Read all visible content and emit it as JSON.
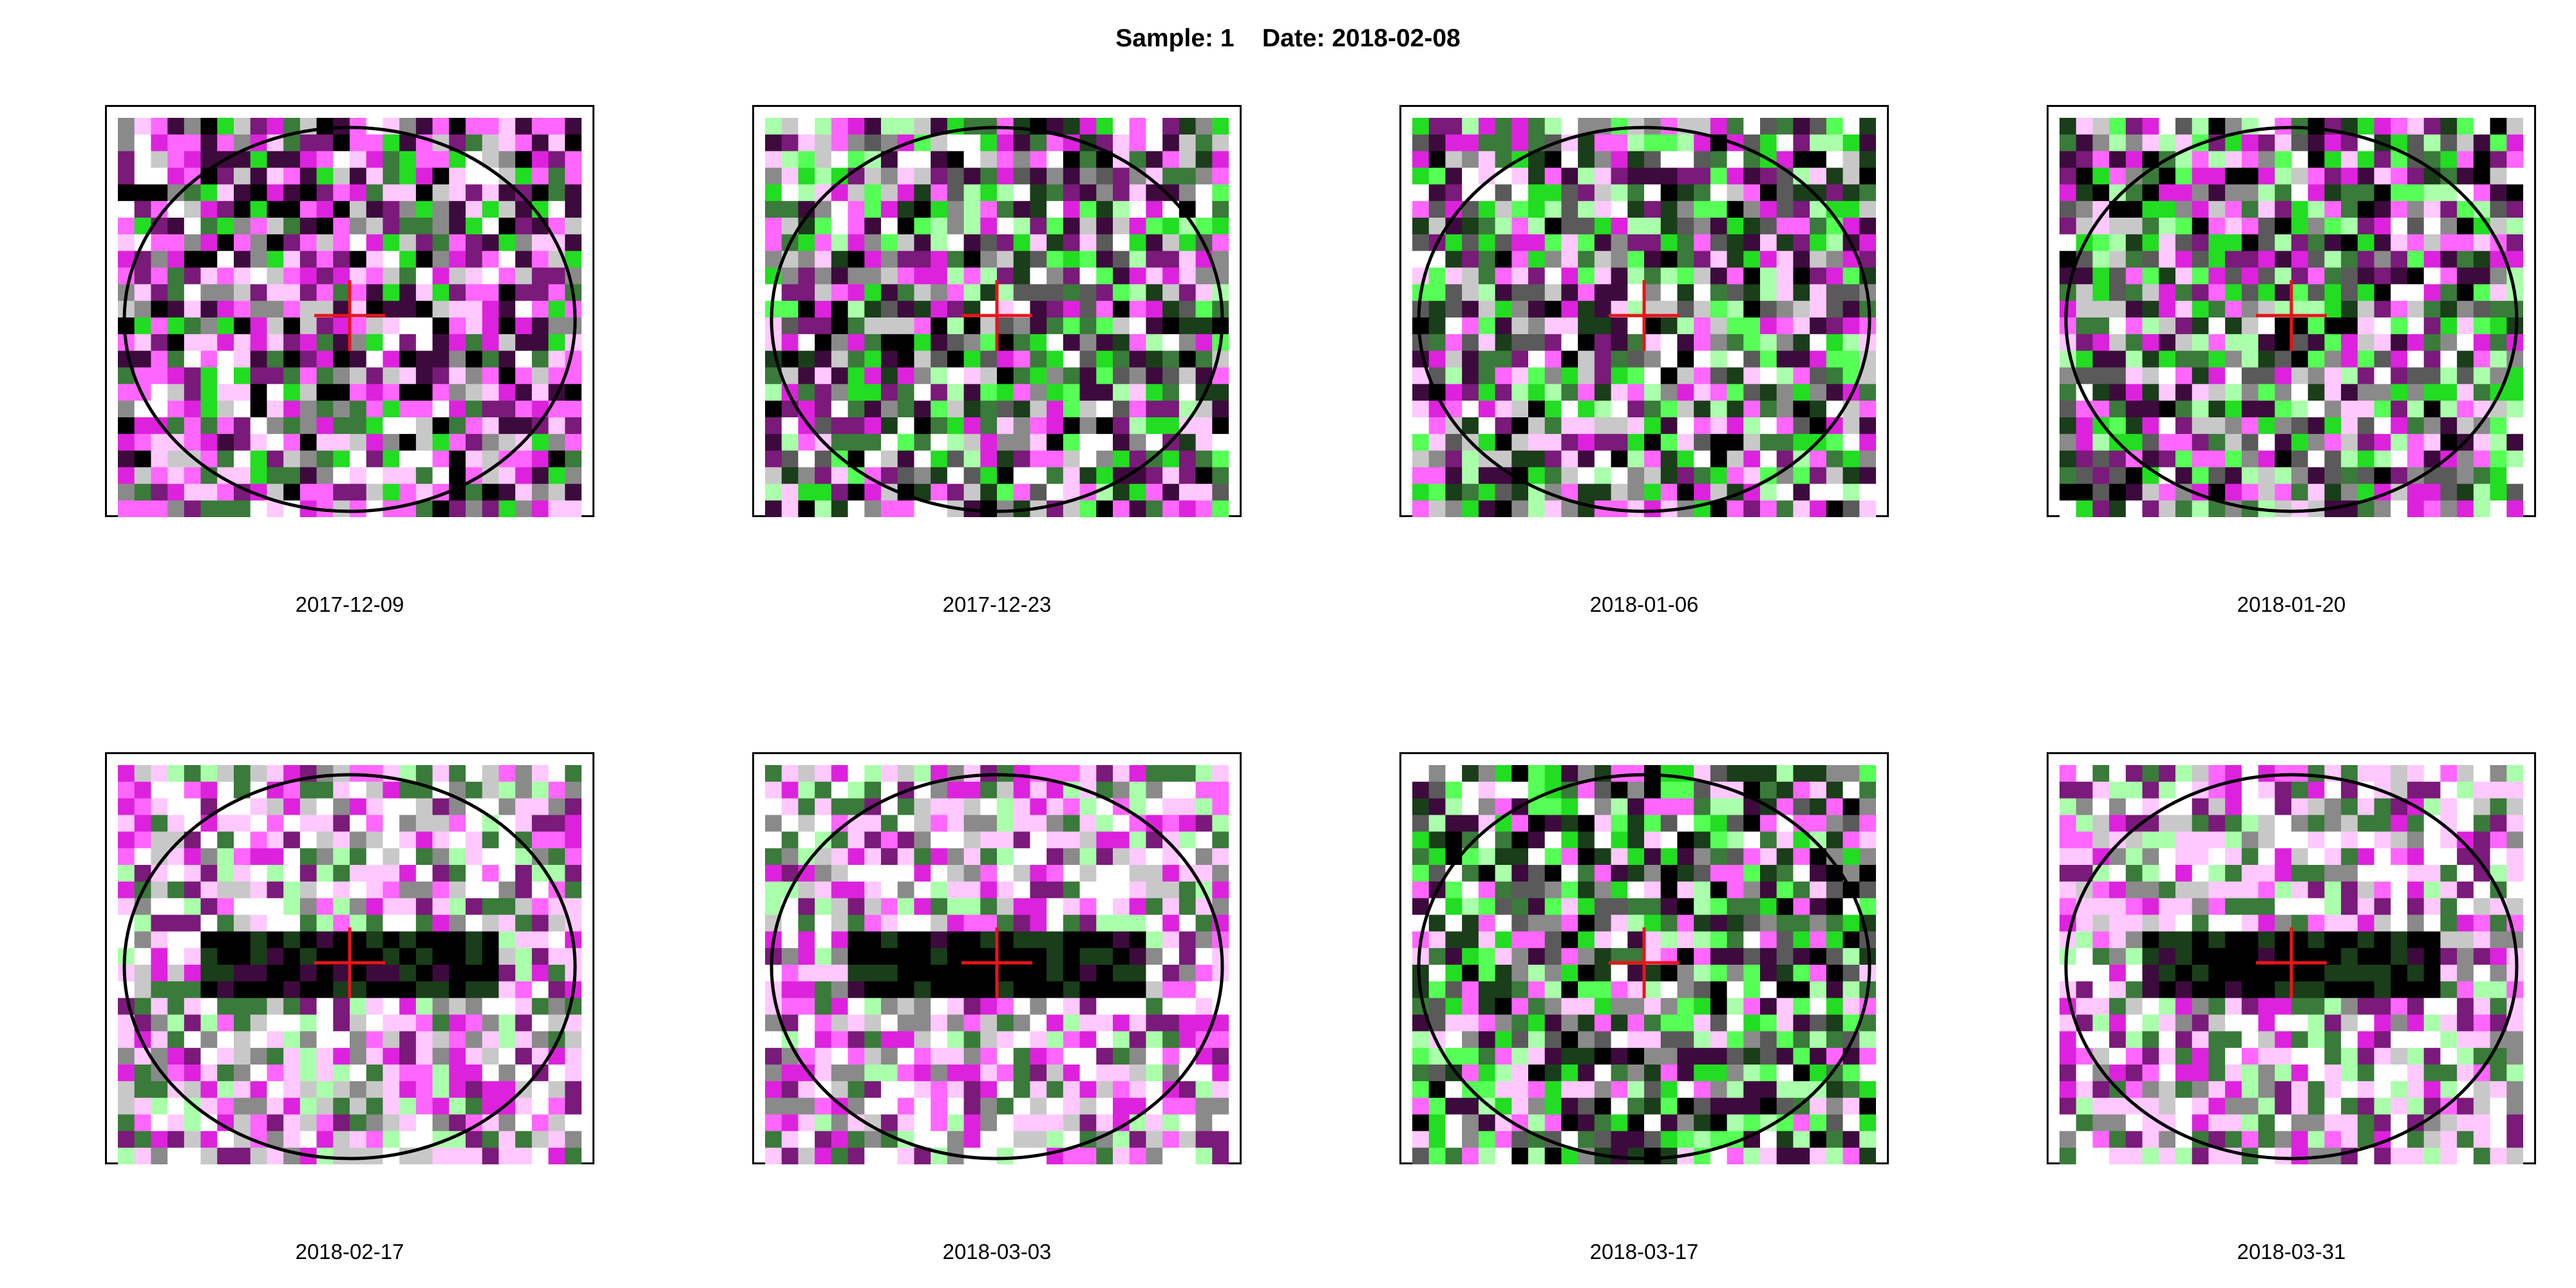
{
  "header": {
    "title": "Sample: 1    Date: 2018-02-08"
  },
  "panels": [
    {
      "date": "2017-12-09",
      "pattern": "noise-magenta"
    },
    {
      "date": "2017-12-23",
      "pattern": "noise-mixed"
    },
    {
      "date": "2018-01-06",
      "pattern": "noise-mixed"
    },
    {
      "date": "2018-01-20",
      "pattern": "noise-mixed"
    },
    {
      "date": "2018-02-17",
      "pattern": "dark-band"
    },
    {
      "date": "2018-03-03",
      "pattern": "dark-band"
    },
    {
      "date": "2018-03-17",
      "pattern": "noise-green"
    },
    {
      "date": "2018-03-31",
      "pattern": "dark-band"
    }
  ],
  "colors": {
    "marker": "#e8141c",
    "ellipse": "#000000",
    "palette": [
      "#000000",
      "#1a3d1a",
      "#3a7a3a",
      "#22dd22",
      "#55ff55",
      "#aaffaa",
      "#ffffff",
      "#ffc8ff",
      "#ff66ff",
      "#dd22dd",
      "#7a1a7a",
      "#3d0a3d",
      "#8a8a8a",
      "#c8c8c8",
      "#5a5a5a"
    ]
  },
  "grid": {
    "cols": 28,
    "rows": 24
  }
}
